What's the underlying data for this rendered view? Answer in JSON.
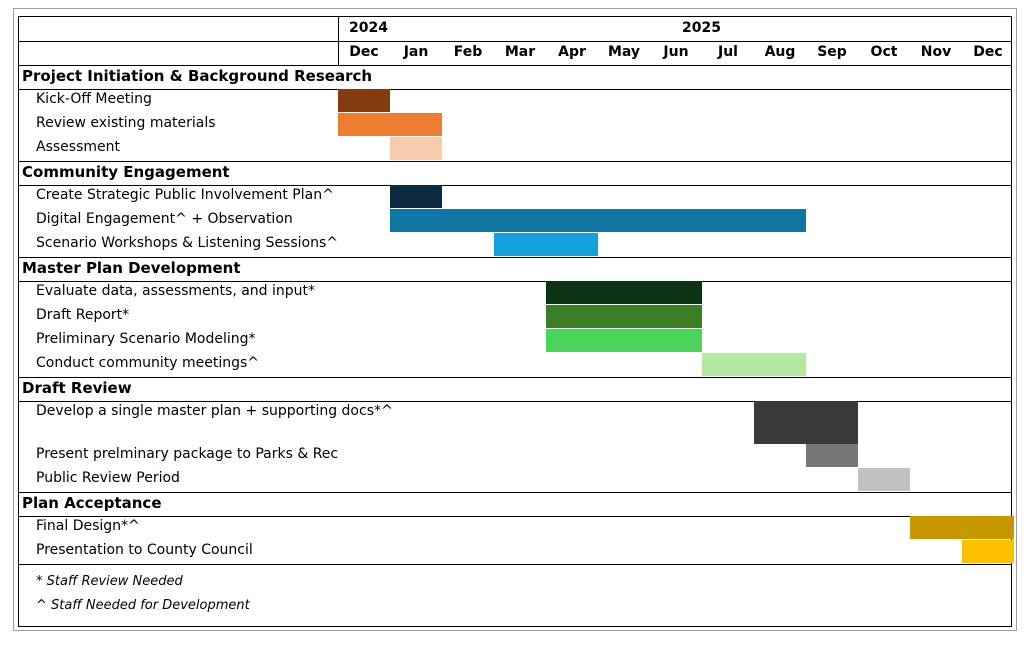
{
  "chart_data": {
    "type": "gantt",
    "years": [
      {
        "label": "2024",
        "start_month": 0
      },
      {
        "label": "2025",
        "start_month": 1
      }
    ],
    "months": [
      "Dec",
      "Jan",
      "Feb",
      "Mar",
      "Apr",
      "May",
      "Jun",
      "Jul",
      "Aug",
      "Sep",
      "Oct",
      "Nov",
      "Dec"
    ],
    "sections": [
      {
        "name": "Project Initiation & Background Research",
        "tasks": [
          {
            "name": "Kick-Off Meeting",
            "start": 0,
            "end": 1,
            "color": "#843c0c"
          },
          {
            "name": "Review existing materials",
            "start": 0,
            "end": 2,
            "color": "#ed7d31"
          },
          {
            "name": "Assessment",
            "start": 1,
            "end": 2,
            "color": "#f8cbad"
          }
        ]
      },
      {
        "name": "Community Engagement",
        "tasks": [
          {
            "name": "Create Strategic Public Involvement Plan^",
            "start": 1,
            "end": 2,
            "color": "#0b2b40"
          },
          {
            "name": "Digital Engagement^ + Observation",
            "start": 1,
            "end": 9,
            "color": "#0e76a0"
          },
          {
            "name": "Scenario Workshops & Listening Sessions^",
            "start": 3,
            "end": 5,
            "color": "#12a3dc"
          }
        ]
      },
      {
        "name": "Master Plan Development",
        "tasks": [
          {
            "name": "Evaluate data, assessments, and input*",
            "start": 4,
            "end": 7,
            "color": "#0b3414"
          },
          {
            "name": "Draft Report*",
            "start": 4,
            "end": 7,
            "color": "#3a7f23"
          },
          {
            "name": "Preliminary Scenario Modeling*",
            "start": 4,
            "end": 7,
            "color": "#4bd35a"
          },
          {
            "name": "Conduct community meetings^",
            "start": 7,
            "end": 9,
            "color": "#b5e8a2"
          }
        ]
      },
      {
        "name": "Draft Review",
        "tasks": [
          {
            "name": "Develop a single master plan + supporting docs*^",
            "start": 8,
            "end": 10,
            "color": "#3a3a3a"
          },
          {
            "name": "Present prelminary package to Parks & Rec",
            "start": 9,
            "end": 10,
            "color": "#767676"
          },
          {
            "name": "Public Review Period",
            "start": 10,
            "end": 11,
            "color": "#c2c2c2"
          }
        ]
      },
      {
        "name": "Plan Acceptance",
        "tasks": [
          {
            "name": "Final Design*^",
            "start": 11,
            "end": 13,
            "color": "#c99800"
          },
          {
            "name": "Presentation to County Council",
            "start": 12,
            "end": 13,
            "color": "#ffc000"
          }
        ]
      }
    ],
    "notes": [
      "* Staff Review Needed",
      "^ Staff Needed for Development"
    ]
  }
}
